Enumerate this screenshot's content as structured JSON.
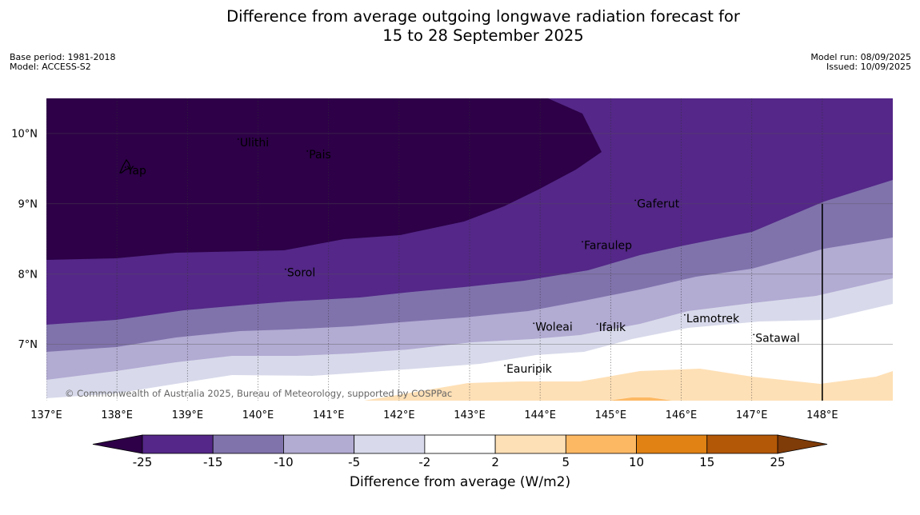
{
  "title": {
    "line1": "Difference from average outgoing longwave radiation forecast for",
    "line2": "15 to 28 September 2025"
  },
  "meta_left": {
    "base_period": "Base period: 1981-2018",
    "model": "Model: ACCESS-S2"
  },
  "meta_right": {
    "model_run": "Model run: 08/09/2025",
    "issued": "Issued: 10/09/2025"
  },
  "copyright": "© Commonwealth of Australia 2025, Bureau of Meteorology, supported by COSPPac",
  "map": {
    "lon_range": [
      137,
      149
    ],
    "lat_range": [
      6.2,
      10.5
    ],
    "lon_ticks": [
      137,
      138,
      139,
      140,
      141,
      142,
      143,
      144,
      145,
      146,
      147,
      148
    ],
    "lon_labels": [
      "137°E",
      "138°E",
      "139°E",
      "140°E",
      "141°E",
      "142°E",
      "143°E",
      "144°E",
      "145°E",
      "146°E",
      "147°E",
      "148°E"
    ],
    "lat_ticks": [
      7,
      8,
      9,
      10
    ],
    "lat_labels": [
      "7°N",
      "8°N",
      "9°N",
      "10°N"
    ],
    "boundary_line": {
      "lon": 148,
      "lat_from": 6.2,
      "lat_to": 9.0
    },
    "places": [
      {
        "name": "Ulithi",
        "lon": 139.72,
        "lat": 9.92
      },
      {
        "name": "Pais",
        "lon": 140.7,
        "lat": 9.75
      },
      {
        "name": "Yap",
        "lon": 138.12,
        "lat": 9.52
      },
      {
        "name": "Gaferut",
        "lon": 145.35,
        "lat": 9.05
      },
      {
        "name": "Faraulep",
        "lon": 144.6,
        "lat": 8.46
      },
      {
        "name": "Sorol",
        "lon": 140.39,
        "lat": 8.07
      },
      {
        "name": "Lamotrek",
        "lon": 146.05,
        "lat": 7.42
      },
      {
        "name": "Satawal",
        "lon": 147.03,
        "lat": 7.14
      },
      {
        "name": "Woleai",
        "lon": 143.91,
        "lat": 7.3
      },
      {
        "name": "Ifalik",
        "lon": 144.81,
        "lat": 7.29
      },
      {
        "name": "Eauripik",
        "lon": 143.5,
        "lat": 6.7
      }
    ]
  },
  "colorbar": {
    "title": "Difference from average (W/m2)",
    "tick_labels": [
      "-25",
      "-15",
      "-10",
      "-5",
      "-2",
      "2",
      "5",
      "10",
      "15",
      "25"
    ],
    "under_color": "#2d0047",
    "over_color": "#7f3b08",
    "colors": [
      "#542788",
      "#8073ac",
      "#b2abd2",
      "#d8daeb",
      "#ffffff",
      "#fee0b6",
      "#fdb863",
      "#e08214",
      "#b35806"
    ]
  }
}
